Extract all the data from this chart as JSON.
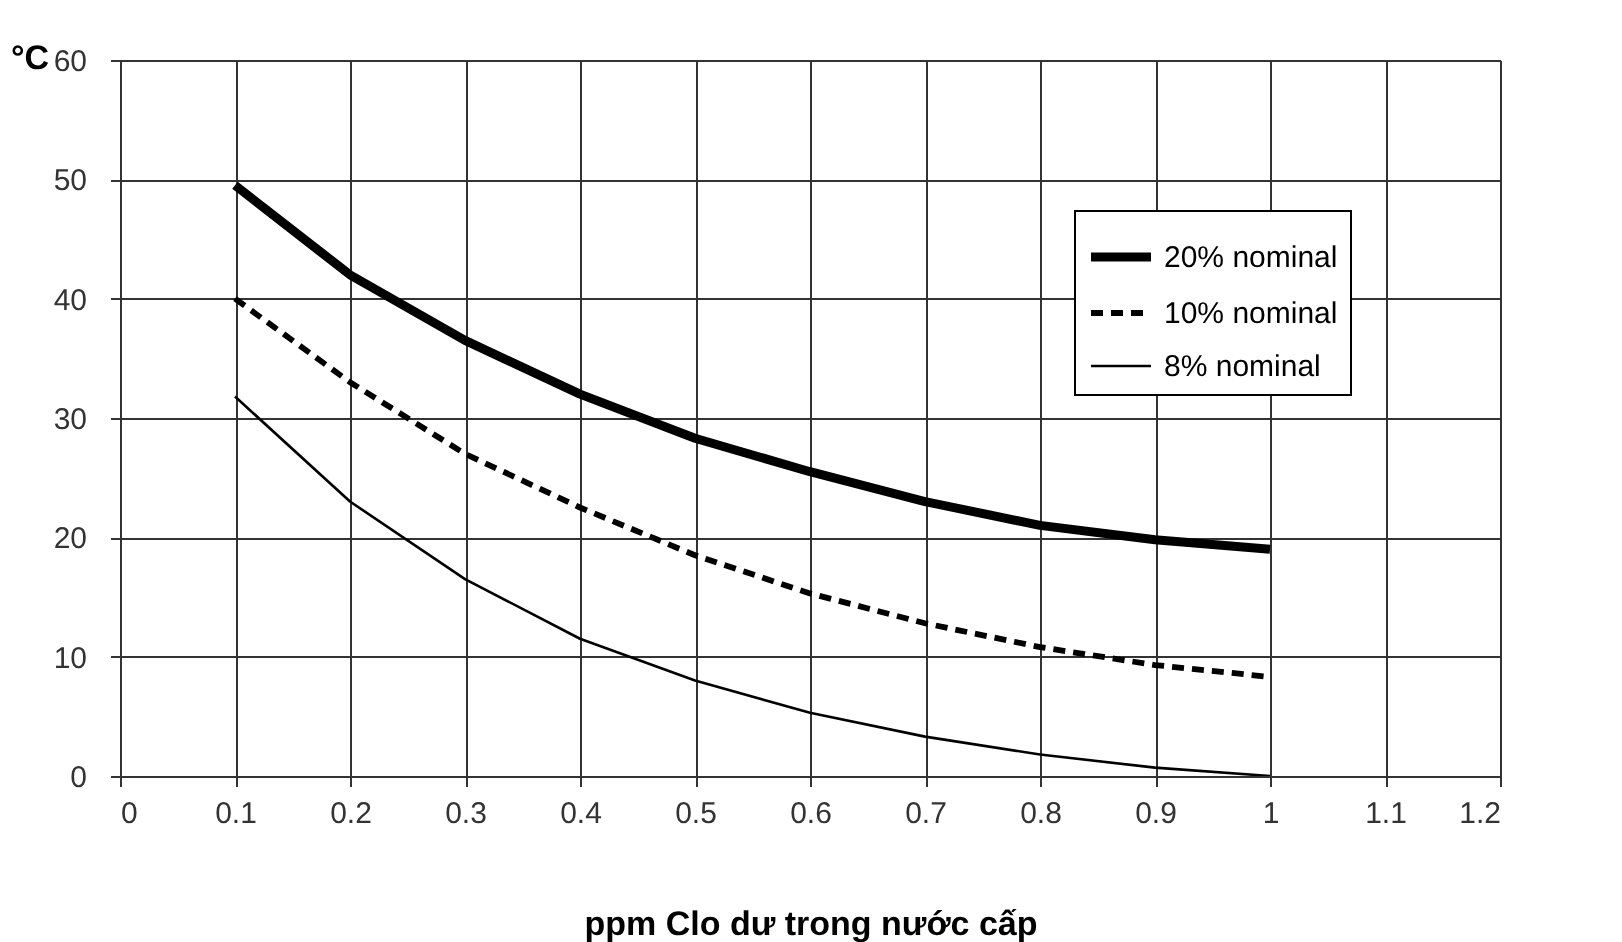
{
  "chart_data": {
    "type": "line",
    "xlabel": "ppm Clo dư trong nước cấp",
    "ylabel": "°C",
    "x": [
      0.1,
      0.2,
      0.3,
      0.4,
      0.5,
      0.6,
      0.7,
      0.8,
      0.9,
      1.0
    ],
    "series": [
      {
        "name": "20% nominal",
        "color": "#000000",
        "line_style": "solid",
        "values": [
          49.5,
          42,
          36.5,
          32,
          28.3,
          25.5,
          23,
          21,
          19.8,
          19
        ]
      },
      {
        "name": "10% nominal",
        "color": "#000000",
        "line_style": "dashed",
        "values": [
          40,
          33,
          27,
          22.5,
          18.5,
          15.3,
          12.8,
          10.8,
          9.3,
          8.3
        ]
      },
      {
        "name": "8% nominal",
        "color": "#000000",
        "line_style": "solid",
        "values": [
          31.8,
          23,
          16.5,
          11.5,
          8,
          5.3,
          3.3,
          1.8,
          0.7,
          0
        ]
      }
    ],
    "xlim": [
      0,
      1.2
    ],
    "xticks": [
      0,
      0.1,
      0.2,
      0.3,
      0.4,
      0.5,
      0.6,
      0.7,
      0.8,
      0.9,
      1,
      1.1,
      1.2
    ],
    "ylim": [
      0,
      60
    ],
    "yticks": [
      0,
      10,
      20,
      30,
      40,
      50,
      60
    ],
    "grid": true,
    "legend": "top right",
    "marker": "none"
  }
}
